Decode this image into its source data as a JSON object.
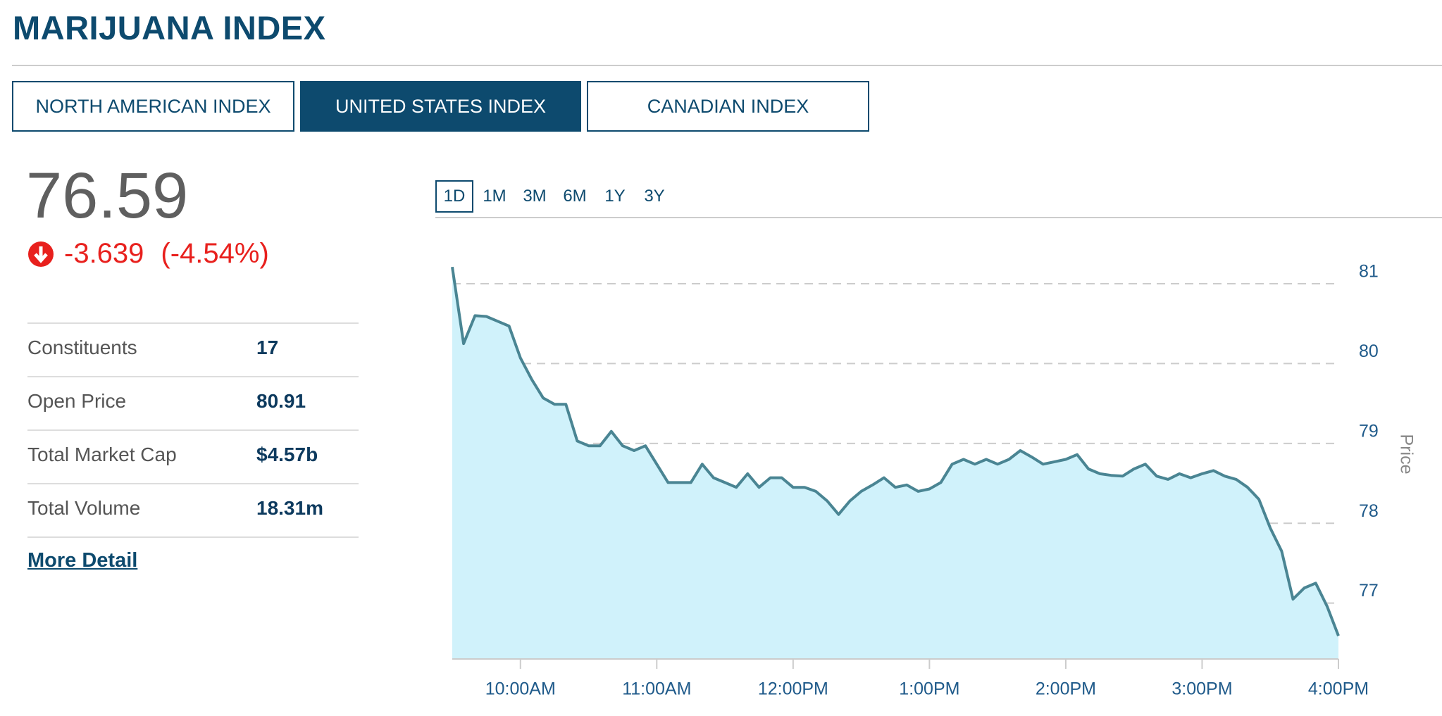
{
  "header": {
    "title": "MARIJUANA INDEX"
  },
  "tabs": [
    {
      "label": "NORTH AMERICAN INDEX",
      "active": false
    },
    {
      "label": "UNITED STATES INDEX",
      "active": true
    },
    {
      "label": "CANADIAN INDEX",
      "active": false
    }
  ],
  "quote": {
    "price": "76.59",
    "change": "-3.639",
    "change_percent": "(-4.54%)"
  },
  "stats": [
    {
      "label": "Constituents",
      "value": "17"
    },
    {
      "label": "Open Price",
      "value": "80.91"
    },
    {
      "label": "Total Market Cap",
      "value": "$4.57b"
    },
    {
      "label": "Total Volume",
      "value": "18.31m"
    }
  ],
  "more_link": "More Detail",
  "periods": [
    {
      "label": "1D",
      "active": true
    },
    {
      "label": "1M",
      "active": false
    },
    {
      "label": "3M",
      "active": false
    },
    {
      "label": "6M",
      "active": false
    },
    {
      "label": "1Y",
      "active": false
    },
    {
      "label": "3Y",
      "active": false
    }
  ],
  "chart_data": {
    "type": "area",
    "y_label": "Price",
    "color": "#4a8593",
    "fill_color": "#d0f2fb",
    "grid": true,
    "x": [
      570,
      575,
      580,
      585,
      590,
      595,
      600,
      605,
      610,
      615,
      620,
      625,
      630,
      635,
      640,
      645,
      650,
      655,
      660,
      665,
      670,
      675,
      680,
      685,
      690,
      695,
      700,
      705,
      710,
      715,
      720,
      725,
      730,
      735,
      740,
      745,
      750,
      755,
      760,
      765,
      770,
      775,
      780,
      785,
      790,
      795,
      800,
      805,
      810,
      815,
      820,
      825,
      830,
      835,
      840,
      845,
      850,
      855,
      860,
      865,
      870,
      875,
      880,
      885,
      890,
      895,
      900,
      905,
      910,
      915,
      920,
      925,
      930,
      935,
      940,
      945,
      950,
      955,
      960
    ],
    "values": [
      81.21,
      80.25,
      80.6,
      80.59,
      80.53,
      80.47,
      80.07,
      79.8,
      79.57,
      79.49,
      79.49,
      79.03,
      78.97,
      78.97,
      79.15,
      78.97,
      78.91,
      78.97,
      78.74,
      78.51,
      78.51,
      78.51,
      78.74,
      78.57,
      78.51,
      78.45,
      78.62,
      78.45,
      78.57,
      78.57,
      78.45,
      78.45,
      78.4,
      78.28,
      78.11,
      78.28,
      78.4,
      78.48,
      78.57,
      78.45,
      78.48,
      78.4,
      78.43,
      78.51,
      78.74,
      78.8,
      78.74,
      78.8,
      78.74,
      78.8,
      78.91,
      78.83,
      78.74,
      78.77,
      78.8,
      78.86,
      78.68,
      78.62,
      78.6,
      78.59,
      78.68,
      78.74,
      78.59,
      78.55,
      78.62,
      78.57,
      78.62,
      78.66,
      78.59,
      78.55,
      78.45,
      78.3,
      77.94,
      77.65,
      77.05,
      77.19,
      77.25,
      76.96,
      76.59
    ],
    "xlim": [
      570,
      960
    ],
    "ylim": [
      76.3,
      81.3
    ],
    "xticks": [
      {
        "value": 600,
        "label": "10:00AM"
      },
      {
        "value": 660,
        "label": "11:00AM"
      },
      {
        "value": 720,
        "label": "12:00PM"
      },
      {
        "value": 780,
        "label": "1:00PM"
      },
      {
        "value": 840,
        "label": "2:00PM"
      },
      {
        "value": 900,
        "label": "3:00PM"
      },
      {
        "value": 960,
        "label": "4:00PM"
      }
    ],
    "yticks": [
      77,
      78,
      79,
      80,
      81
    ]
  }
}
